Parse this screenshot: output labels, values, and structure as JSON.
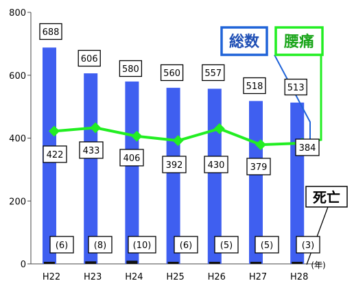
{
  "chart_data": {
    "type": "bar",
    "title": "",
    "xlabel": "",
    "ylabel": "",
    "x_unit": "(年)",
    "ylim": [
      0,
      800
    ],
    "yticks": [
      0,
      200,
      400,
      600,
      800
    ],
    "grid": false,
    "categories": [
      "H22",
      "H23",
      "H24",
      "H25",
      "H26",
      "H27",
      "H28"
    ],
    "series": [
      {
        "name": "総数",
        "kind": "bar",
        "color": "#3f5ff0",
        "values": [
          688,
          606,
          580,
          560,
          557,
          518,
          513
        ]
      },
      {
        "name": "腰痛",
        "kind": "line",
        "color": "#22ee22",
        "values": [
          422,
          433,
          406,
          392,
          430,
          379,
          384
        ]
      },
      {
        "name": "死亡",
        "kind": "bar",
        "color": "#111111",
        "values": [
          6,
          8,
          10,
          6,
          5,
          5,
          3
        ],
        "labels": [
          "(6)",
          "(8)",
          "(10)",
          "(6)",
          "(5)",
          "(5)",
          "(3)"
        ]
      }
    ],
    "legend": [
      {
        "label": "総数",
        "border": "#1f63d8",
        "text_color": "#1f4fb5"
      },
      {
        "label": "腰痛",
        "border": "#22ee22",
        "text_color": "#1aa51a"
      },
      {
        "label": "死亡",
        "border": "#000000",
        "text_color": "#000000"
      }
    ]
  }
}
